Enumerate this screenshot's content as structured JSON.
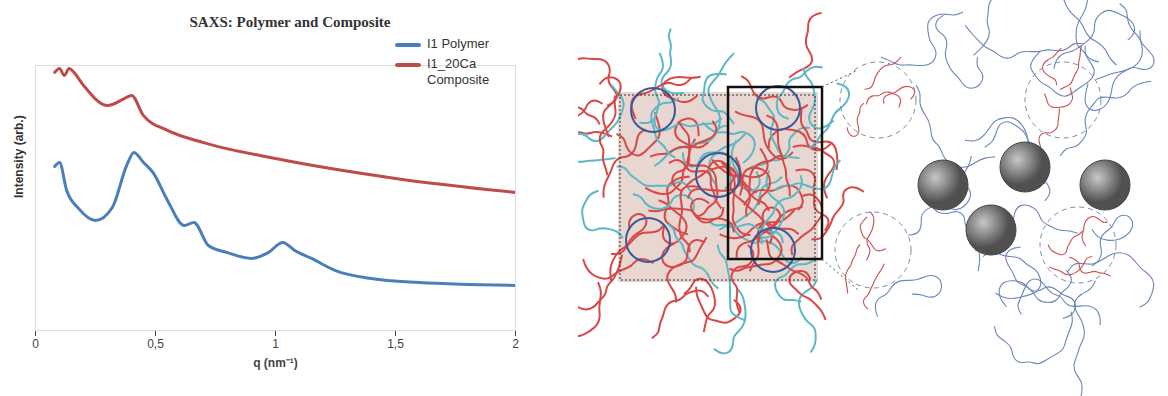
{
  "chart_data": {
    "type": "line",
    "title": "SAXS: Polymer and Composite",
    "x_label": "q (nm⁻¹)",
    "y_label": "Intensity (arb.)",
    "xlim": [
      0,
      2
    ],
    "xticks": [
      0,
      {
        "value": 0.5,
        "label": "0,5"
      },
      1,
      {
        "value": 1.5,
        "label": "1,5"
      },
      2
    ],
    "ylim": [
      0,
      10
    ],
    "tick_labels": "x",
    "legend": "top-right",
    "series": [
      {
        "name": "I1 Polymer",
        "color": "#4a7ebb",
        "x": [
          0.08,
          0.1,
          0.13,
          0.18,
          0.25,
          0.32,
          0.38,
          0.41,
          0.45,
          0.49,
          0.55,
          0.62,
          0.66,
          0.72,
          0.8,
          0.9,
          0.97,
          1.03,
          1.08,
          1.15,
          1.25,
          1.4,
          1.6,
          1.8,
          2.0
        ],
        "values": [
          6.19,
          6.34,
          5.28,
          4.6,
          4.15,
          4.64,
          6.23,
          6.72,
          6.34,
          5.96,
          4.91,
          3.96,
          4.08,
          3.21,
          2.94,
          2.72,
          2.94,
          3.32,
          3.02,
          2.72,
          2.26,
          1.96,
          1.81,
          1.74,
          1.7
        ]
      },
      {
        "name": "I1_20Ca Composite",
        "color": "#be4b48",
        "x": [
          0.08,
          0.1,
          0.12,
          0.14,
          0.16,
          0.2,
          0.3,
          0.37,
          0.4,
          0.45,
          0.55,
          0.7,
          1.0,
          1.5,
          2.0
        ],
        "values": [
          9.74,
          9.89,
          9.62,
          9.89,
          9.74,
          9.25,
          8.49,
          8.75,
          8.87,
          8.11,
          7.55,
          7.09,
          6.49,
          5.74,
          5.21
        ]
      }
    ]
  }
}
